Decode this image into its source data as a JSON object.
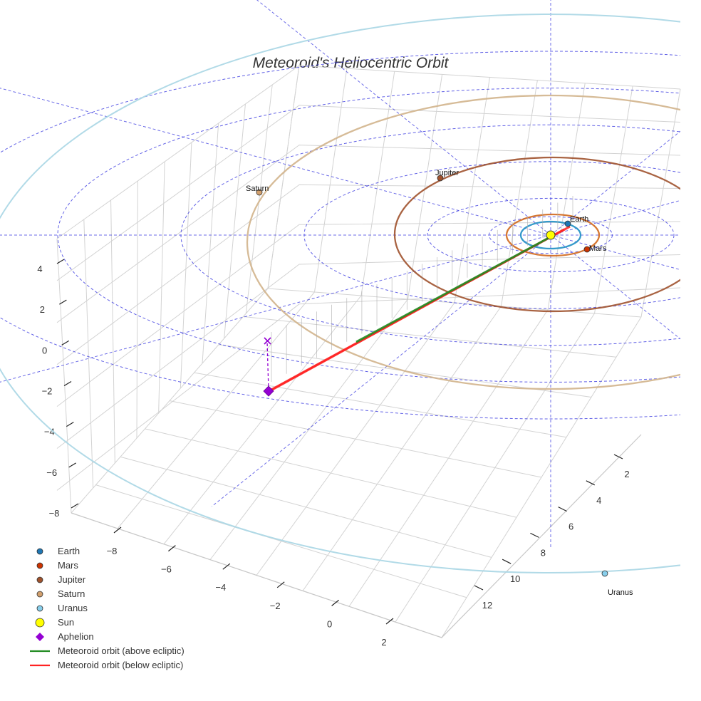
{
  "chart_data": {
    "type": "scatter",
    "title": "Meteoroid's Heliocentric Orbit",
    "projection": "3d",
    "axes": {
      "x": {
        "ticks": [
          -8,
          -6,
          -4,
          -2,
          0,
          2
        ]
      },
      "y": {
        "ticks": [
          2,
          4,
          6,
          8,
          10,
          12
        ]
      },
      "z": {
        "ticks": [
          4,
          2,
          0,
          -2,
          -4,
          -6,
          -8
        ]
      }
    },
    "bodies": [
      {
        "name": "Sun",
        "label": "",
        "color": "#ffff00",
        "distance_au": 0.0,
        "angle_deg": 0
      },
      {
        "name": "Earth",
        "label": "Earth",
        "color": "#1f77b4",
        "distance_au": 1.0,
        "angle_deg": 60
      },
      {
        "name": "Mars",
        "label": "Mars",
        "color": "#cc3300",
        "distance_au": 1.52,
        "angle_deg": -38
      },
      {
        "name": "Jupiter",
        "label": "Jupiter",
        "color": "#a0522d",
        "distance_au": 5.2,
        "angle_deg": 108
      },
      {
        "name": "Saturn",
        "label": "Saturn",
        "color": "#d2a06e",
        "distance_au": 9.54,
        "angle_deg": 155
      },
      {
        "name": "Uranus",
        "label": "Uranus",
        "color": "#87ceeb",
        "distance_au": 19.2,
        "angle_deg": -44
      }
    ],
    "orbit_radii_au": {
      "Earth": 1.0,
      "Mars": 1.52,
      "Jupiter": 5.2,
      "Saturn": 9.54,
      "Uranus": 19.2
    },
    "orbit_colors": {
      "Earth": "#1f8fc4",
      "Mars": "#d2691e",
      "Jupiter": "#a0522d",
      "Saturn": "#d2b48c",
      "Uranus": "#add8e6"
    },
    "ecliptic_grid_rings_au": [
      1,
      2,
      4,
      6,
      8,
      10
    ],
    "meteoroid": {
      "perihelion_au": [
        0.3,
        0.15,
        0.0
      ],
      "aphelion_au": [
        -8.0,
        8.8,
        -1.9
      ],
      "above_color": "#228b22",
      "below_color": "#ff2222"
    },
    "aphelion": {
      "label": "Aphelion",
      "color": "#9400d3"
    },
    "legend": [
      {
        "label": "Earth",
        "symbol": "circle",
        "color": "#1f77b4"
      },
      {
        "label": "Mars",
        "symbol": "circle",
        "color": "#cc3300"
      },
      {
        "label": "Jupiter",
        "symbol": "circle",
        "color": "#a0522d"
      },
      {
        "label": "Saturn",
        "symbol": "circle",
        "color": "#d2a06e"
      },
      {
        "label": "Uranus",
        "symbol": "circle",
        "color": "#87ceeb"
      },
      {
        "label": "Sun",
        "symbol": "circle-large",
        "color": "#ffff00"
      },
      {
        "label": "Aphelion",
        "symbol": "diamond",
        "color": "#9400d3"
      },
      {
        "label": "Meteoroid orbit (above ecliptic)",
        "symbol": "line",
        "color": "#228b22"
      },
      {
        "label": "Meteoroid orbit (below ecliptic)",
        "symbol": "line",
        "color": "#ff2222"
      }
    ]
  }
}
